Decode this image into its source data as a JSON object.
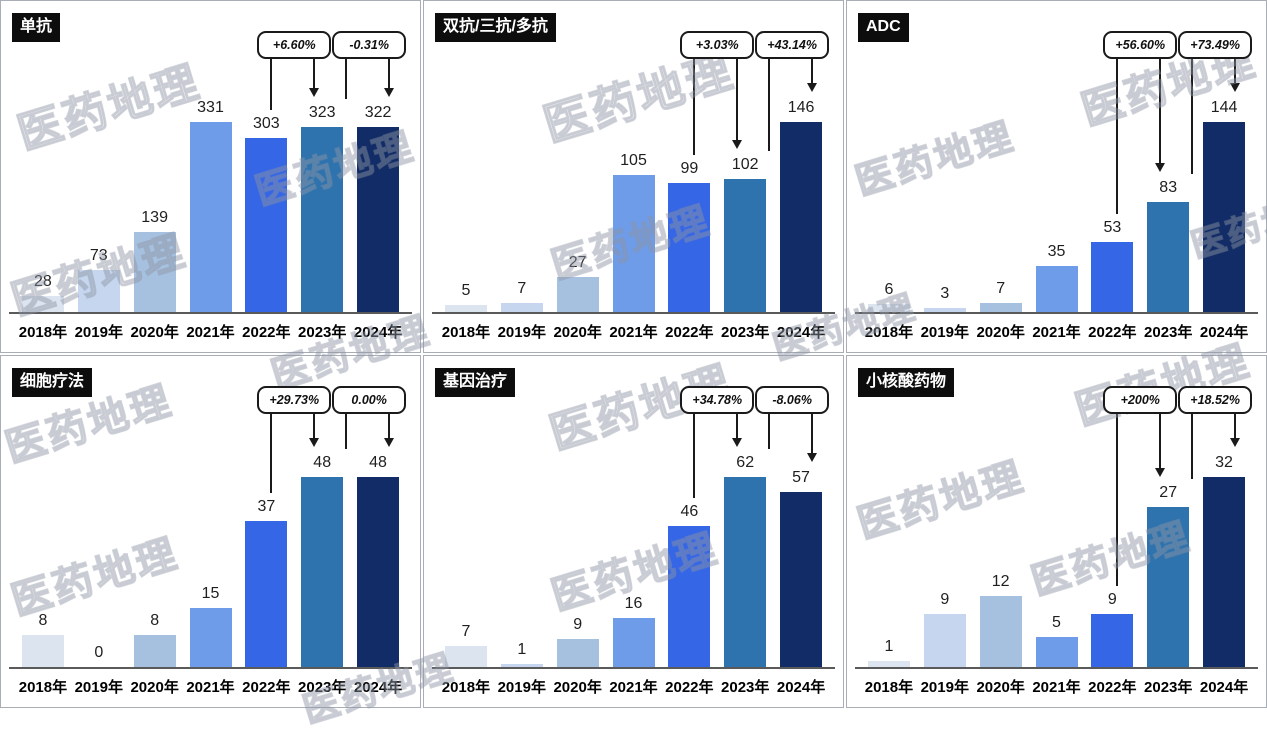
{
  "watermark_text": "医药地理",
  "years": [
    "2018年",
    "2019年",
    "2020年",
    "2021年",
    "2022年",
    "2023年",
    "2024年"
  ],
  "bar_colors": [
    "#dce4f0",
    "#c5d6ee",
    "#a6c0e0",
    "#6f9ce8",
    "#3566e5",
    "#2f73ae",
    "#112c66"
  ],
  "chart_data": [
    {
      "type": "bar",
      "title": "单抗",
      "categories": [
        "2018年",
        "2019年",
        "2020年",
        "2021年",
        "2022年",
        "2023年",
        "2024年"
      ],
      "values": [
        28,
        73,
        139,
        331,
        303,
        323,
        322
      ],
      "annotations": [
        {
          "label": "+6.60%",
          "target_index": 5,
          "target_year": "2023年"
        },
        {
          "label": "-0.31%",
          "target_index": 6,
          "target_year": "2024年"
        }
      ]
    },
    {
      "type": "bar",
      "title": "双抗/三抗/多抗",
      "categories": [
        "2018年",
        "2019年",
        "2020年",
        "2021年",
        "2022年",
        "2023年",
        "2024年"
      ],
      "values": [
        5,
        7,
        27,
        105,
        99,
        102,
        146
      ],
      "annotations": [
        {
          "label": "+3.03%",
          "target_index": 5,
          "target_year": "2023年"
        },
        {
          "label": "+43.14%",
          "target_index": 6,
          "target_year": "2024年"
        }
      ]
    },
    {
      "type": "bar",
      "title": "ADC",
      "categories": [
        "2018年",
        "2019年",
        "2020年",
        "2021年",
        "2022年",
        "2023年",
        "2024年"
      ],
      "values": [
        6,
        3,
        7,
        35,
        53,
        83,
        144
      ],
      "annotations": [
        {
          "label": "+56.60%",
          "target_index": 5,
          "target_year": "2023年"
        },
        {
          "label": "+73.49%",
          "target_index": 6,
          "target_year": "2024年"
        }
      ]
    },
    {
      "type": "bar",
      "title": "细胞疗法",
      "categories": [
        "2018年",
        "2019年",
        "2020年",
        "2021年",
        "2022年",
        "2023年",
        "2024年"
      ],
      "values": [
        8,
        0,
        8,
        15,
        37,
        48,
        48
      ],
      "annotations": [
        {
          "label": "+29.73%",
          "target_index": 5,
          "target_year": "2023年"
        },
        {
          "label": "0.00%",
          "target_index": 6,
          "target_year": "2024年"
        }
      ]
    },
    {
      "type": "bar",
      "title": "基因治疗",
      "categories": [
        "2018年",
        "2019年",
        "2020年",
        "2021年",
        "2022年",
        "2023年",
        "2024年"
      ],
      "values": [
        7,
        1,
        9,
        16,
        46,
        62,
        57
      ],
      "annotations": [
        {
          "label": "+34.78%",
          "target_index": 5,
          "target_year": "2023年"
        },
        {
          "label": "-8.06%",
          "target_index": 6,
          "target_year": "2024年"
        }
      ]
    },
    {
      "type": "bar",
      "title": "小核酸药物",
      "categories": [
        "2018年",
        "2019年",
        "2020年",
        "2021年",
        "2022年",
        "2023年",
        "2024年"
      ],
      "values": [
        1,
        9,
        12,
        5,
        9,
        27,
        32
      ],
      "annotations": [
        {
          "label": "+200%",
          "target_index": 5,
          "target_year": "2023年"
        },
        {
          "label": "+18.52%",
          "target_index": 6,
          "target_year": "2024年"
        }
      ]
    }
  ]
}
